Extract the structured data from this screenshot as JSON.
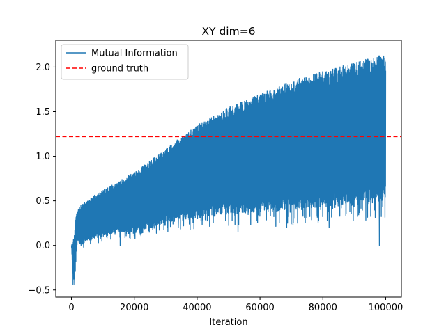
{
  "chart_data": {
    "type": "line",
    "title": "XY dim=6",
    "xlabel": "Iteration",
    "ylabel": "",
    "xlim": [
      -5000,
      105000
    ],
    "ylim": [
      -0.58,
      2.3
    ],
    "x_ticks": [
      0,
      20000,
      40000,
      60000,
      80000,
      100000
    ],
    "x_tick_labels": [
      "0",
      "20000",
      "40000",
      "60000",
      "80000",
      "100000"
    ],
    "y_ticks": [
      -0.5,
      0.0,
      0.5,
      1.0,
      1.5,
      2.0
    ],
    "y_tick_labels": [
      "−0.5",
      "0.0",
      "0.5",
      "1.0",
      "1.5",
      "2.0"
    ],
    "grid": false,
    "legend": {
      "position": "upper-left"
    },
    "series": [
      {
        "name": "Mutual Information",
        "color": "#1f77b4",
        "style": "solid",
        "envelope": {
          "x": [
            0,
            500,
            1000,
            1500,
            2000,
            3000,
            5000,
            8000,
            10000,
            15000,
            20000,
            25000,
            30000,
            35000,
            40000,
            45000,
            50000,
            55000,
            60000,
            65000,
            70000,
            75000,
            80000,
            85000,
            90000,
            95000,
            100000
          ],
          "upper": [
            0.0,
            0.05,
            0.15,
            0.35,
            0.4,
            0.45,
            0.5,
            0.58,
            0.62,
            0.72,
            0.82,
            0.95,
            1.08,
            1.22,
            1.35,
            1.45,
            1.55,
            1.62,
            1.7,
            1.78,
            1.85,
            1.9,
            1.95,
            2.0,
            2.05,
            2.1,
            2.15
          ],
          "lower": [
            0.0,
            -0.4,
            -0.42,
            -0.1,
            0.05,
            0.0,
            0.05,
            0.08,
            0.1,
            0.15,
            0.15,
            0.2,
            0.25,
            0.28,
            0.3,
            0.32,
            0.35,
            0.36,
            0.38,
            0.38,
            0.4,
            0.42,
            0.42,
            0.44,
            0.45,
            0.47,
            0.5
          ],
          "min_points": [
            [
              1000,
              -0.44
            ],
            [
              15500,
              0.0
            ],
            [
              34000,
              0.2
            ],
            [
              53000,
              0.15
            ],
            [
              68500,
              0.2
            ],
            [
              82000,
              0.2
            ],
            [
              98000,
              0.0
            ]
          ]
        }
      },
      {
        "name": "ground truth",
        "color": "#ff0000",
        "style": "dashed",
        "y": 1.22
      }
    ]
  }
}
